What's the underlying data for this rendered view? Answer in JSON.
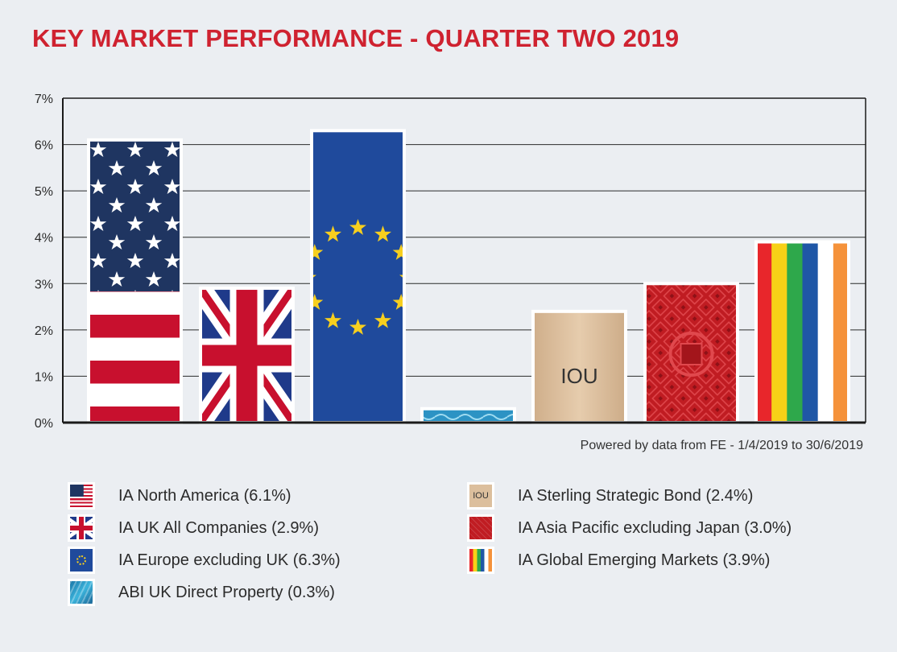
{
  "chart_data": {
    "type": "bar",
    "title": "KEY MARKET PERFORMANCE - QUARTER TWO 2019",
    "categories": [
      "IA North America",
      "IA UK All Companies",
      "IA Europe excluding UK",
      "ABI UK Direct Property",
      "IA Sterling Strategic Bond",
      "IA Asia Pacific excluding Japan",
      "IA Global Emerging Markets"
    ],
    "values": [
      6.1,
      2.9,
      6.3,
      0.3,
      2.4,
      3.0,
      3.9
    ],
    "bar_styles": [
      "us-flag",
      "uk-flag",
      "eu-flag",
      "water",
      "iou-note",
      "asian-pattern",
      "rainbow"
    ],
    "bar_labels": [
      "",
      "",
      "",
      "",
      "IOU",
      "",
      ""
    ],
    "yticks": [
      "0%",
      "1%",
      "2%",
      "3%",
      "4%",
      "5%",
      "6%",
      "7%"
    ],
    "ylim": [
      0,
      7
    ],
    "grid": true,
    "xlabel": "",
    "ylabel": "",
    "unit": "%",
    "source_note": "Powered by data from FE - 1/4/2019 to 30/6/2019"
  },
  "legend": {
    "left": [
      {
        "label": "IA North America (6.1%)",
        "icon": "us-flag-icon"
      },
      {
        "label": "IA UK All Companies (2.9%)",
        "icon": "uk-flag-icon"
      },
      {
        "label": "IA Europe excluding UK (6.3%)",
        "icon": "eu-flag-icon"
      },
      {
        "label": "ABI UK Direct Property (0.3%)",
        "icon": "water-icon"
      }
    ],
    "right": [
      {
        "label": "IA Sterling Strategic Bond (2.4%)",
        "icon": "iou-note-icon",
        "icon_text": "IOU"
      },
      {
        "label": "IA Asia Pacific excluding Japan (3.0%)",
        "icon": "asian-pattern-icon"
      },
      {
        "label": "IA Global Emerging Markets (3.9%)",
        "icon": "rainbow-icon"
      }
    ]
  },
  "colors": {
    "title": "#cf2230",
    "background": "#ebeef2",
    "grid": "#2b2b2b",
    "flag_red": "#c8102e",
    "flag_navy": "#1f3561",
    "eu_blue": "#1f4a9c",
    "eu_star": "#f7cf1e",
    "asia_red": "#c01c22",
    "bond_tan": "#dcbf9d"
  }
}
